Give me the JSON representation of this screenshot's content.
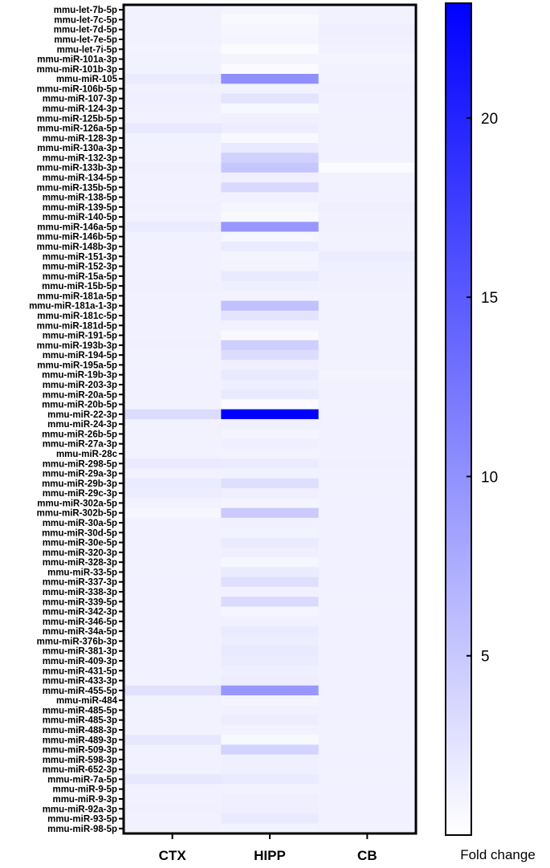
{
  "chart_data": {
    "type": "heatmap",
    "columns": [
      "CTX",
      "HIPP",
      "CB"
    ],
    "rows": [
      "mmu-let-7b-5p",
      "mmu-let-7c-5p",
      "mmu-let-7d-5p",
      "mmu-let-7e-5p",
      "mmu-let-7i-5p",
      "mmu-miR-101a-3p",
      "mmu-miR-101b-3p",
      "mmu-miR-105",
      "mmu-miR-106b-5p",
      "mmu-miR-107-3p",
      "mmu-miR-124-3p",
      "mmu-miR-125b-5p",
      "mmu-miR-126a-5p",
      "mmu-miR-128-3p",
      "mmu-miR-130a-3p",
      "mmu-miR-132-3p",
      "mmu-miR-133b-3p",
      "mmu-miR-134-5p",
      "mmu-miR-135b-5p",
      "mmu-miR-138-5p",
      "mmu-miR-139-5p",
      "mmu-miR-140-5p",
      "mmu-miR-146a-5p",
      "mmu-miR-146b-5p",
      "mmu-miR-148b-3p",
      "mmu-miR-151-3p",
      "mmu-miR-152-3p",
      "mmu-miR-15a-5p",
      "mmu-miR-15b-5p",
      "mmu-miR-181a-5p",
      "mmu-miR-181a-1-3p",
      "mmu-miR-181c-5p",
      "mmu-miR-181d-5p",
      "mmu-miR-191-5p",
      "mmu-miR-193b-3p",
      "mmu-miR-194-5p",
      "mmu-miR-195a-5p",
      "mmu-miR-19b-3p",
      "mmu-miR-203-3p",
      "mmu-miR-20a-5p",
      "mmu-miR-20b-5p",
      "mmu-miR-22-3p",
      "mmu-miR-24-3p",
      "mmu-miR-26b-5p",
      "mmu-miR-27a-3p",
      "mmu-miR-28c",
      "mmu-miR-298-5p",
      "mmu-miR-29a-3p",
      "mmu-miR-29b-3p",
      "mmu-miR-29c-3p",
      "mmu-miR-302a-5p",
      "mmu-miR-302b-5p",
      "mmu-miR-30a-5p",
      "mmu-miR-30d-5p",
      "mmu-miR-30e-5p",
      "mmu-miR-320-3p",
      "mmu-miR-328-3p",
      "mmu-miR-33-5p",
      "mmu-miR-337-3p",
      "mmu-miR-338-3p",
      "mmu-miR-339-5p",
      "mmu-miR-342-3p",
      "mmu-miR-346-5p",
      "mmu-miR-34a-5p",
      "mmu-miR-376b-3p",
      "mmu-miR-381-3p",
      "mmu-miR-409-3p",
      "mmu-miR-431-5p",
      "mmu-miR-433-3p",
      "mmu-miR-455-5p",
      "mmu-miR-484",
      "mmu-miR-485-5p",
      "mmu-miR-485-3p",
      "mmu-miR-488-3p",
      "mmu-miR-489-3p",
      "mmu-miR-509-3p",
      "mmu-miR-598-3p",
      "mmu-miR-652-3p",
      "mmu-miR-7a-5p",
      "mmu-miR-9-5p",
      "mmu-miR-9-3p",
      "mmu-miR-92a-3p",
      "mmu-miR-93-5p",
      "mmu-miR-98-5p"
    ],
    "values": [
      [
        1.2,
        1.0,
        1.2
      ],
      [
        1.2,
        0.6,
        1.2
      ],
      [
        1.2,
        0.8,
        1.5
      ],
      [
        1.2,
        0.9,
        1.4
      ],
      [
        1.1,
        0.5,
        1.3
      ],
      [
        1.2,
        1.0,
        1.0
      ],
      [
        1.2,
        0.5,
        1.2
      ],
      [
        1.8,
        10.2,
        1.3
      ],
      [
        1.4,
        1.2,
        1.4
      ],
      [
        1.5,
        2.5,
        1.3
      ],
      [
        1.4,
        0.7,
        1.3
      ],
      [
        1.3,
        1.4,
        1.2
      ],
      [
        2.1,
        1.6,
        1.2
      ],
      [
        1.3,
        0.6,
        1.2
      ],
      [
        1.2,
        2.0,
        1.3
      ],
      [
        1.3,
        4.2,
        1.2
      ],
      [
        1.5,
        5.2,
        0.5
      ],
      [
        1.3,
        1.5,
        1.2
      ],
      [
        1.3,
        3.5,
        1.3
      ],
      [
        1.3,
        1.4,
        1.3
      ],
      [
        1.4,
        0.9,
        1.5
      ],
      [
        1.3,
        0.6,
        1.4
      ],
      [
        1.8,
        9.5,
        1.4
      ],
      [
        1.3,
        0.8,
        1.2
      ],
      [
        1.3,
        1.8,
        1.3
      ],
      [
        1.2,
        1.0,
        1.7
      ],
      [
        1.3,
        1.1,
        1.5
      ],
      [
        1.3,
        2.0,
        1.4
      ],
      [
        1.4,
        1.5,
        1.4
      ],
      [
        1.3,
        1.1,
        1.2
      ],
      [
        1.3,
        5.6,
        1.3
      ],
      [
        1.3,
        2.5,
        1.2
      ],
      [
        1.3,
        1.3,
        1.3
      ],
      [
        1.2,
        0.6,
        1.2
      ],
      [
        1.4,
        4.5,
        1.2
      ],
      [
        1.3,
        3.2,
        1.3
      ],
      [
        1.2,
        1.5,
        1.2
      ],
      [
        1.3,
        2.0,
        1.0
      ],
      [
        1.3,
        1.5,
        1.3
      ],
      [
        1.3,
        1.9,
        1.3
      ],
      [
        1.2,
        0.5,
        1.2
      ],
      [
        3.2,
        23.2,
        1.3
      ],
      [
        1.3,
        1.4,
        1.3
      ],
      [
        1.2,
        1.0,
        1.3
      ],
      [
        1.3,
        1.5,
        1.3
      ],
      [
        1.2,
        1.1,
        1.3
      ],
      [
        2.0,
        1.8,
        1.4
      ],
      [
        1.3,
        1.2,
        1.3
      ],
      [
        1.8,
        3.0,
        1.2
      ],
      [
        1.6,
        1.5,
        1.2
      ],
      [
        1.2,
        1.0,
        1.3
      ],
      [
        0.8,
        4.8,
        1.3
      ],
      [
        1.3,
        1.4,
        1.3
      ],
      [
        1.3,
        1.1,
        1.3
      ],
      [
        1.3,
        1.8,
        1.3
      ],
      [
        1.3,
        1.5,
        1.3
      ],
      [
        1.2,
        0.8,
        1.3
      ],
      [
        1.3,
        1.8,
        1.3
      ],
      [
        1.3,
        3.0,
        1.3
      ],
      [
        1.3,
        1.4,
        1.3
      ],
      [
        1.3,
        3.4,
        1.2
      ],
      [
        1.3,
        0.9,
        1.3
      ],
      [
        1.3,
        1.4,
        1.3
      ],
      [
        1.3,
        1.8,
        1.3
      ],
      [
        1.3,
        1.6,
        1.3
      ],
      [
        1.3,
        2.0,
        1.3
      ],
      [
        1.3,
        1.7,
        1.3
      ],
      [
        1.3,
        1.5,
        1.3
      ],
      [
        1.3,
        1.6,
        1.3
      ],
      [
        2.7,
        9.5,
        1.3
      ],
      [
        1.3,
        1.0,
        1.3
      ],
      [
        1.2,
        1.4,
        1.3
      ],
      [
        1.2,
        1.6,
        1.3
      ],
      [
        1.2,
        1.2,
        1.2
      ],
      [
        2.2,
        0.6,
        1.2
      ],
      [
        1.3,
        4.0,
        1.3
      ],
      [
        1.3,
        1.5,
        1.3
      ],
      [
        1.3,
        1.5,
        1.2
      ],
      [
        2.2,
        1.8,
        1.3
      ],
      [
        1.3,
        1.2,
        1.3
      ],
      [
        1.3,
        1.5,
        1.3
      ],
      [
        1.4,
        1.5,
        1.3
      ],
      [
        1.3,
        2.0,
        1.3
      ],
      [
        1.2,
        1.1,
        1.3
      ]
    ],
    "colorbar": {
      "label": "Fold change",
      "ticks": [
        5,
        10,
        15,
        20
      ],
      "range": [
        0,
        23.2
      ],
      "low_color": "#ffffff",
      "high_color": "#0000ff"
    }
  }
}
